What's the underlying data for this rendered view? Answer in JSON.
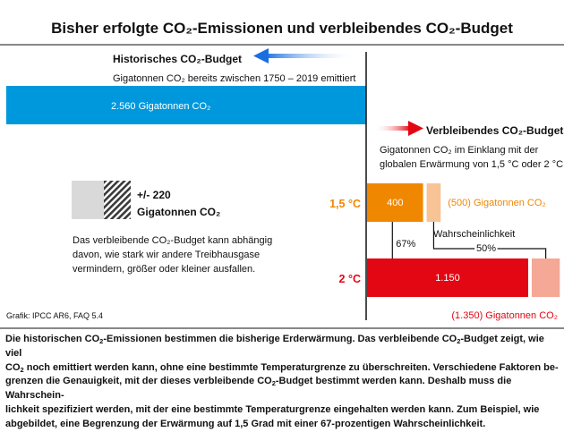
{
  "chart_data": {
    "type": "bar",
    "title": "Bisher erfolgte CO₂-Emissionen und verbleibendes CO₂-Budget",
    "unit": "Gigatonnen CO₂",
    "historical": {
      "heading": "Historisches CO₂-Budget",
      "subheading": "Gigatonnen CO₂ bereits zwischen 1750 – 2019 emittiert",
      "value": 2560,
      "label": "2.560 Gigatonnen CO₂",
      "color": "#0098dc"
    },
    "remaining": {
      "heading": "Verbleibendes CO₂-Budget",
      "subheading_line1": "Gigatonnen CO₂ im Einklang mit der",
      "subheading_line2": "globalen Erwärmung von 1,5 °C oder 2 °C",
      "probability_heading": "Wahrscheinlichkeit",
      "scenarios": [
        {
          "name": "1,5 °C",
          "value_67": 400,
          "value_67_label": "400",
          "value_50": 500,
          "value_50_label": "(500) Gigatonnen CO₂",
          "color": "#f08700",
          "light_color": "#f8c395"
        },
        {
          "name": "2 °C",
          "value_67": 1150,
          "value_67_label": "1.150",
          "value_50": 1350,
          "value_50_label": "(1.350) Gigatonnen CO₂",
          "color": "#e30613",
          "light_color": "#f4a895"
        }
      ],
      "probabilities": [
        "67%",
        "50%"
      ]
    },
    "uncertainty": {
      "label_line1": "+/- 220",
      "label_line2": "Gigatonnen CO₂",
      "value": 220,
      "note_line1": "Das verbleibende CO₂-Budget kann abhängig",
      "note_line2": "davon, wie stark wir andere Treibhausgase",
      "note_line3": "vermindern, größer oder kleiner ausfallen."
    },
    "source": "Grafik: IPCC AR6, FAQ 5.4"
  },
  "caption": [
    "Die historischen CO₂-Emissionen bestimmen die bisherige Erderwärmung. Das verbleibende CO₂-Budget zeigt, wie viel",
    "CO₂ noch emittiert werden kann, ohne eine bestimmte Temperaturgrenze zu überschreiten. Verschiedene Faktoren be-",
    "grenzen die Genauigkeit, mit der dieses verbleibende CO₂-Budget bestimmt werden kann. Deshalb muss die Wahrschein-",
    "lichkeit spezifiziert werden, mit der eine bestimmte Temperaturgrenze eingehalten werden kann. Zum Beispiel, wie",
    "abgebildet, eine Begrenzung der Erwärmung auf 1,5 Grad mit einer 67-prozentigen Wahrscheinlichkeit."
  ],
  "colors": {
    "blue": "#0098dc",
    "arrow_blue": "#1e6fd9",
    "arrow_red": "#e30613",
    "grey": "#d9d9d9",
    "line": "#111111"
  }
}
